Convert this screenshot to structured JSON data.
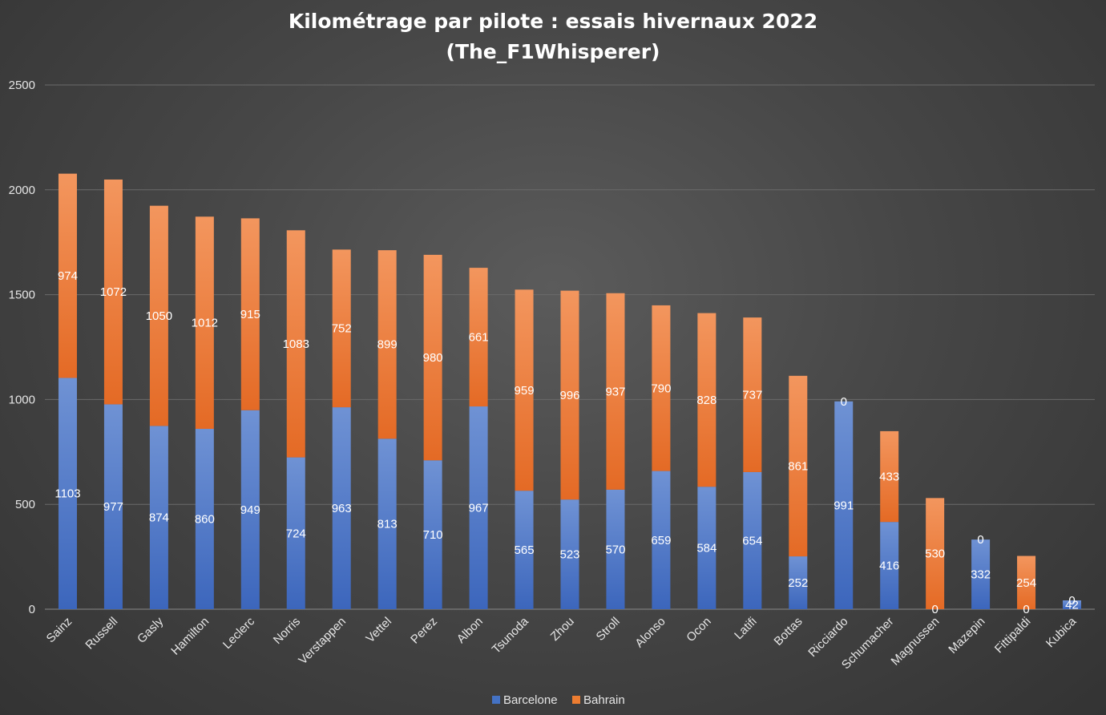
{
  "chart_data": {
    "type": "bar",
    "stacked": true,
    "title": "Kilométrage par pilote : essais hivernaux 2022",
    "subtitle": "(The_F1Whisperer)",
    "xlabel": "",
    "ylabel": "",
    "ylim": [
      0,
      2500
    ],
    "yticks": [
      0,
      500,
      1000,
      1500,
      2000,
      2500
    ],
    "grid": true,
    "legend_position": "bottom",
    "categories": [
      "Sainz",
      "Russell",
      "Gasly",
      "Hamilton",
      "Leclerc",
      "Norris",
      "Verstappen",
      "Vettel",
      "Perez",
      "Albon",
      "Tsunoda",
      "Zhou",
      "Stroll",
      "Alonso",
      "Ocon",
      "Latifi",
      "Bottas",
      "Ricciardo",
      "Schumacher",
      "Magnussen",
      "Mazepin",
      "Fittipaldi",
      "Kubica"
    ],
    "series": [
      {
        "name": "Barcelone",
        "color": "#4472c4",
        "values": [
          1103,
          977,
          874,
          860,
          949,
          724,
          963,
          813,
          710,
          967,
          565,
          523,
          570,
          659,
          584,
          654,
          252,
          991,
          416,
          0,
          332,
          0,
          42
        ]
      },
      {
        "name": "Bahrain",
        "color": "#ed7d31",
        "values": [
          974,
          1072,
          1050,
          1012,
          915,
          1083,
          752,
          899,
          980,
          661,
          959,
          996,
          937,
          790,
          828,
          737,
          861,
          0,
          433,
          530,
          0,
          254,
          0
        ]
      }
    ]
  }
}
